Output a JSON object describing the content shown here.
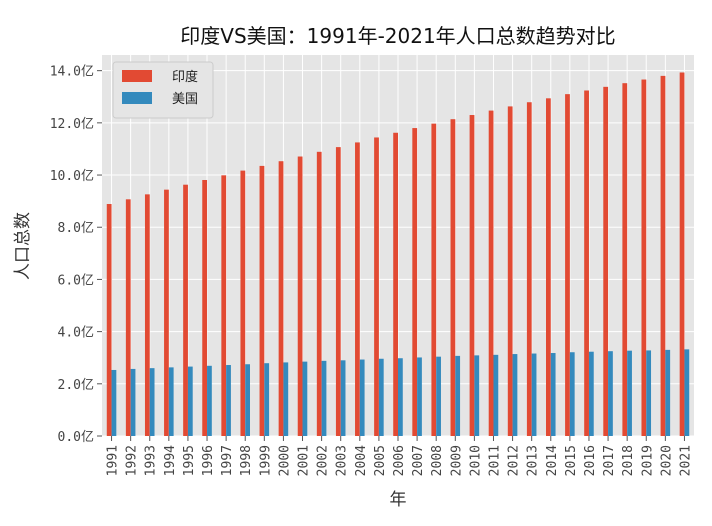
{
  "chart_data": {
    "type": "bar",
    "title": "印度VS美国：1991年-2021年人口总数趋势对比",
    "xlabel": "年",
    "ylabel": "人口总数",
    "ylim": [
      0,
      14.6
    ],
    "yticks": [
      0,
      2,
      4,
      6,
      8,
      10,
      12,
      14
    ],
    "ytick_labels": [
      "0.0亿",
      "2.0亿",
      "4.0亿",
      "6.0亿",
      "8.0亿",
      "10.0亿",
      "12.0亿",
      "14.0亿"
    ],
    "categories": [
      "1991",
      "1992",
      "1993",
      "1994",
      "1995",
      "1996",
      "1997",
      "1998",
      "1999",
      "2000",
      "2001",
      "2002",
      "2003",
      "2004",
      "2005",
      "2006",
      "2007",
      "2008",
      "2009",
      "2010",
      "2011",
      "2012",
      "2013",
      "2014",
      "2015",
      "2016",
      "2017",
      "2018",
      "2019",
      "2020",
      "2021"
    ],
    "series": [
      {
        "name": "印度",
        "color": "#e24a33",
        "values": [
          8.89,
          9.07,
          9.26,
          9.44,
          9.63,
          9.81,
          9.99,
          10.17,
          10.35,
          10.53,
          10.71,
          10.89,
          11.07,
          11.25,
          11.44,
          11.62,
          11.8,
          11.97,
          12.14,
          12.3,
          12.47,
          12.63,
          12.79,
          12.94,
          13.1,
          13.24,
          13.38,
          13.52,
          13.66,
          13.8,
          13.93
        ]
      },
      {
        "name": "美国",
        "color": "#348abd",
        "values": [
          2.53,
          2.57,
          2.6,
          2.63,
          2.66,
          2.69,
          2.72,
          2.75,
          2.79,
          2.82,
          2.85,
          2.88,
          2.9,
          2.93,
          2.96,
          2.98,
          3.01,
          3.04,
          3.07,
          3.09,
          3.11,
          3.14,
          3.16,
          3.18,
          3.21,
          3.23,
          3.25,
          3.27,
          3.28,
          3.3,
          3.32
        ]
      }
    ],
    "legend_position": "top-left",
    "grid": true,
    "background": "#e5e5e5",
    "grid_color": "#ffffff"
  }
}
